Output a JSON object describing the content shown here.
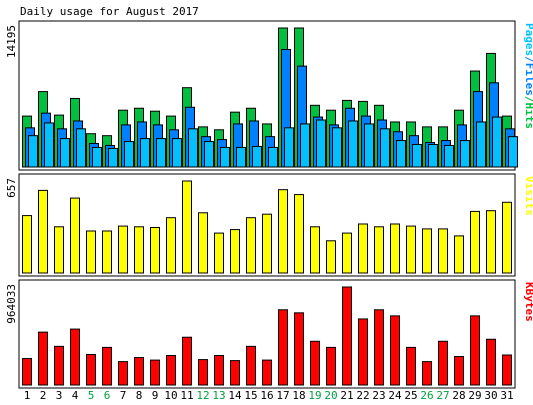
{
  "colors": {
    "background": "#ffffff",
    "panel_border": "#000000",
    "hits": "#00c040",
    "files": "#0080ff",
    "pages": "#00c0ff",
    "visits": "#ffff00",
    "kbytes": "#ff0000",
    "weekday_label": "#000000",
    "weekend_label": "#00a040"
  },
  "chart_data": {
    "type": "bar",
    "title": "Daily usage for August 2017",
    "categories": [
      "1",
      "2",
      "3",
      "4",
      "5",
      "6",
      "7",
      "8",
      "9",
      "10",
      "11",
      "12",
      "13",
      "14",
      "15",
      "16",
      "17",
      "18",
      "19",
      "20",
      "21",
      "22",
      "23",
      "24",
      "25",
      "26",
      "27",
      "28",
      "29",
      "30",
      "31"
    ],
    "weekend_days": [
      "5",
      "6",
      "12",
      "13",
      "19",
      "20",
      "26",
      "27"
    ],
    "panels": [
      {
        "id": "hits_panel",
        "ymax_label": "14195",
        "ymax": 14195,
        "legend": [
          {
            "text": "Pages",
            "color": "#00c0ff"
          },
          {
            "text": "/",
            "color": "#0080ff"
          },
          {
            "text": "Files",
            "color": "#0080ff"
          },
          {
            "text": "/",
            "color": "#00c040"
          },
          {
            "text": "Hits",
            "color": "#00c040"
          }
        ],
        "series": [
          {
            "name": "Hits",
            "color": "#00c040",
            "values": [
              5200,
              7700,
              5300,
              7000,
              3400,
              3200,
              5800,
              6000,
              5700,
              5200,
              8100,
              4100,
              3800,
              5600,
              6000,
              4400,
              14195,
              14195,
              6300,
              5800,
              6800,
              6700,
              6300,
              4600,
              4600,
              4100,
              4100,
              5800,
              9800,
              11600,
              5200
            ]
          },
          {
            "name": "Files",
            "color": "#0080ff",
            "values": [
              4000,
              5500,
              3900,
              4700,
              2400,
              2200,
              4300,
              4600,
              4300,
              3800,
              6100,
              3100,
              2800,
              4400,
              4700,
              3100,
              12000,
              10300,
              5100,
              4300,
              6000,
              5200,
              4800,
              3600,
              3200,
              2500,
              2700,
              4300,
              7700,
              8600,
              3900
            ]
          },
          {
            "name": "Pages",
            "color": "#00c0ff",
            "values": [
              3200,
              4500,
              2900,
              3900,
              2000,
              1900,
              2600,
              2900,
              2900,
              2900,
              3900,
              2600,
              2000,
              2000,
              2100,
              2000,
              4000,
              4400,
              4800,
              4000,
              4700,
              4400,
              3900,
              2700,
              2300,
              2300,
              2200,
              2700,
              4600,
              5100,
              3100
            ]
          }
        ]
      },
      {
        "id": "visits_panel",
        "ymax_label": "657",
        "ymax": 657,
        "legend": [
          {
            "text": "Visits",
            "color": "#ffff00"
          }
        ],
        "series": [
          {
            "name": "Visits",
            "color": "#ffff00",
            "values": [
              410,
              590,
              330,
              535,
              300,
              300,
              335,
              330,
              325,
              395,
              657,
              430,
              285,
              310,
              395,
              420,
              595,
              560,
              330,
              230,
              285,
              350,
              330,
              350,
              335,
              315,
              315,
              265,
              440,
              445,
              505
            ]
          }
        ]
      },
      {
        "id": "kbytes_panel",
        "ymax_label": "964033",
        "ymax": 964033,
        "legend": [
          {
            "text": "KBytes",
            "color": "#ff0000"
          }
        ],
        "series": [
          {
            "name": "KBytes",
            "color": "#ff0000",
            "values": [
              260000,
              520000,
              380000,
              550000,
              300000,
              370000,
              230000,
              270000,
              245000,
              290000,
              470000,
              250000,
              290000,
              240000,
              380000,
              245000,
              740000,
              710000,
              430000,
              370000,
              964033,
              650000,
              740000,
              680000,
              370000,
              230000,
              430000,
              280000,
              680000,
              450000,
              295000
            ]
          }
        ]
      }
    ]
  }
}
